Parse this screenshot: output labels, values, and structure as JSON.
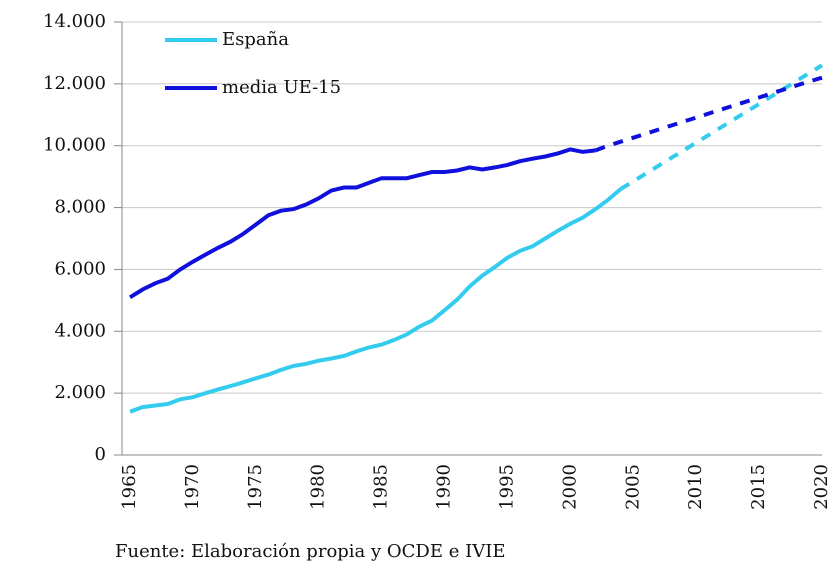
{
  "chart_data": {
    "type": "line",
    "x": [
      1965,
      1966,
      1967,
      1968,
      1969,
      1970,
      1971,
      1972,
      1973,
      1974,
      1975,
      1976,
      1977,
      1978,
      1979,
      1980,
      1981,
      1982,
      1983,
      1984,
      1985,
      1986,
      1987,
      1988,
      1989,
      1990,
      1991,
      1992,
      1993,
      1994,
      1995,
      1996,
      1997,
      1998,
      1999,
      2000,
      2001,
      2002,
      2003,
      2004,
      2005,
      2006,
      2007,
      2008,
      2009,
      2010,
      2011,
      2012,
      2013,
      2014,
      2015,
      2016,
      2017,
      2018,
      2019,
      2020
    ],
    "xlim": [
      1965,
      2020
    ],
    "xticks": [
      1965,
      1970,
      1975,
      1980,
      1985,
      1990,
      1995,
      2000,
      2005,
      2010,
      2015,
      2020
    ],
    "ylim": [
      0,
      14000
    ],
    "yticks": [
      0,
      {
        "value": 2000,
        "label": "2.000"
      },
      {
        "value": 4000,
        "label": "4.000"
      },
      {
        "value": 6000,
        "label": "6.000"
      },
      {
        "value": 8000,
        "label": "8.000"
      },
      {
        "value": 10000,
        "label": "10.000"
      },
      {
        "value": 12000,
        "label": "12.000"
      },
      {
        "value": 14000,
        "label": "14.000"
      }
    ],
    "grid": true,
    "legend": "top-left",
    "series": [
      {
        "name": "España",
        "color": "#33ccee",
        "values": [
          1400,
          1550,
          1600,
          1650,
          1800,
          1870,
          2000,
          2120,
          2230,
          2350,
          2480,
          2600,
          2750,
          2880,
          2950,
          3050,
          3120,
          3200,
          3350,
          3480,
          3570,
          3720,
          3900,
          4150,
          4350,
          4680,
          5020,
          5450,
          5800,
          6080,
          6380,
          6600,
          6750,
          7000,
          7250,
          7480,
          7680,
          7950,
          8250,
          8600,
          null,
          null,
          null,
          null,
          null,
          null,
          null,
          null,
          null,
          null,
          null,
          null,
          null,
          null,
          null,
          null
        ],
        "projection": [
          null,
          null,
          null,
          null,
          null,
          null,
          null,
          null,
          null,
          null,
          null,
          null,
          null,
          null,
          null,
          null,
          null,
          null,
          null,
          null,
          null,
          null,
          null,
          null,
          null,
          null,
          null,
          null,
          null,
          null,
          null,
          null,
          null,
          null,
          null,
          null,
          null,
          null,
          null,
          8600,
          8850,
          9100,
          9350,
          9600,
          9850,
          10100,
          10350,
          10600,
          10850,
          11100,
          11350,
          11600,
          11850,
          12100,
          12350,
          12600
        ]
      },
      {
        "name": "media UE-15",
        "color": "#1010dd",
        "values": [
          5100,
          5350,
          5550,
          5700,
          6000,
          6250,
          6480,
          6700,
          6900,
          7150,
          7450,
          7750,
          7900,
          7950,
          8100,
          8300,
          8550,
          8650,
          8650,
          8800,
          8950,
          8950,
          8950,
          9050,
          9150,
          9150,
          9200,
          9300,
          9230,
          9300,
          9380,
          9500,
          9580,
          9650,
          9750,
          9880,
          9800,
          9850,
          null,
          null,
          null,
          null,
          null,
          null,
          null,
          null,
          null,
          null,
          null,
          null,
          null,
          null,
          null,
          null,
          null,
          null
        ],
        "projection": [
          null,
          null,
          null,
          null,
          null,
          null,
          null,
          null,
          null,
          null,
          null,
          null,
          null,
          null,
          null,
          null,
          null,
          null,
          null,
          null,
          null,
          null,
          null,
          null,
          null,
          null,
          null,
          null,
          null,
          null,
          null,
          null,
          null,
          null,
          null,
          null,
          null,
          9850,
          10000,
          10130,
          10260,
          10390,
          10520,
          10650,
          10780,
          10910,
          11040,
          11170,
          11300,
          11430,
          11560,
          11690,
          11820,
          11950,
          12080,
          12200
        ]
      }
    ],
    "source": "Fuente: Elaboración propia y OCDE e IVIE"
  }
}
